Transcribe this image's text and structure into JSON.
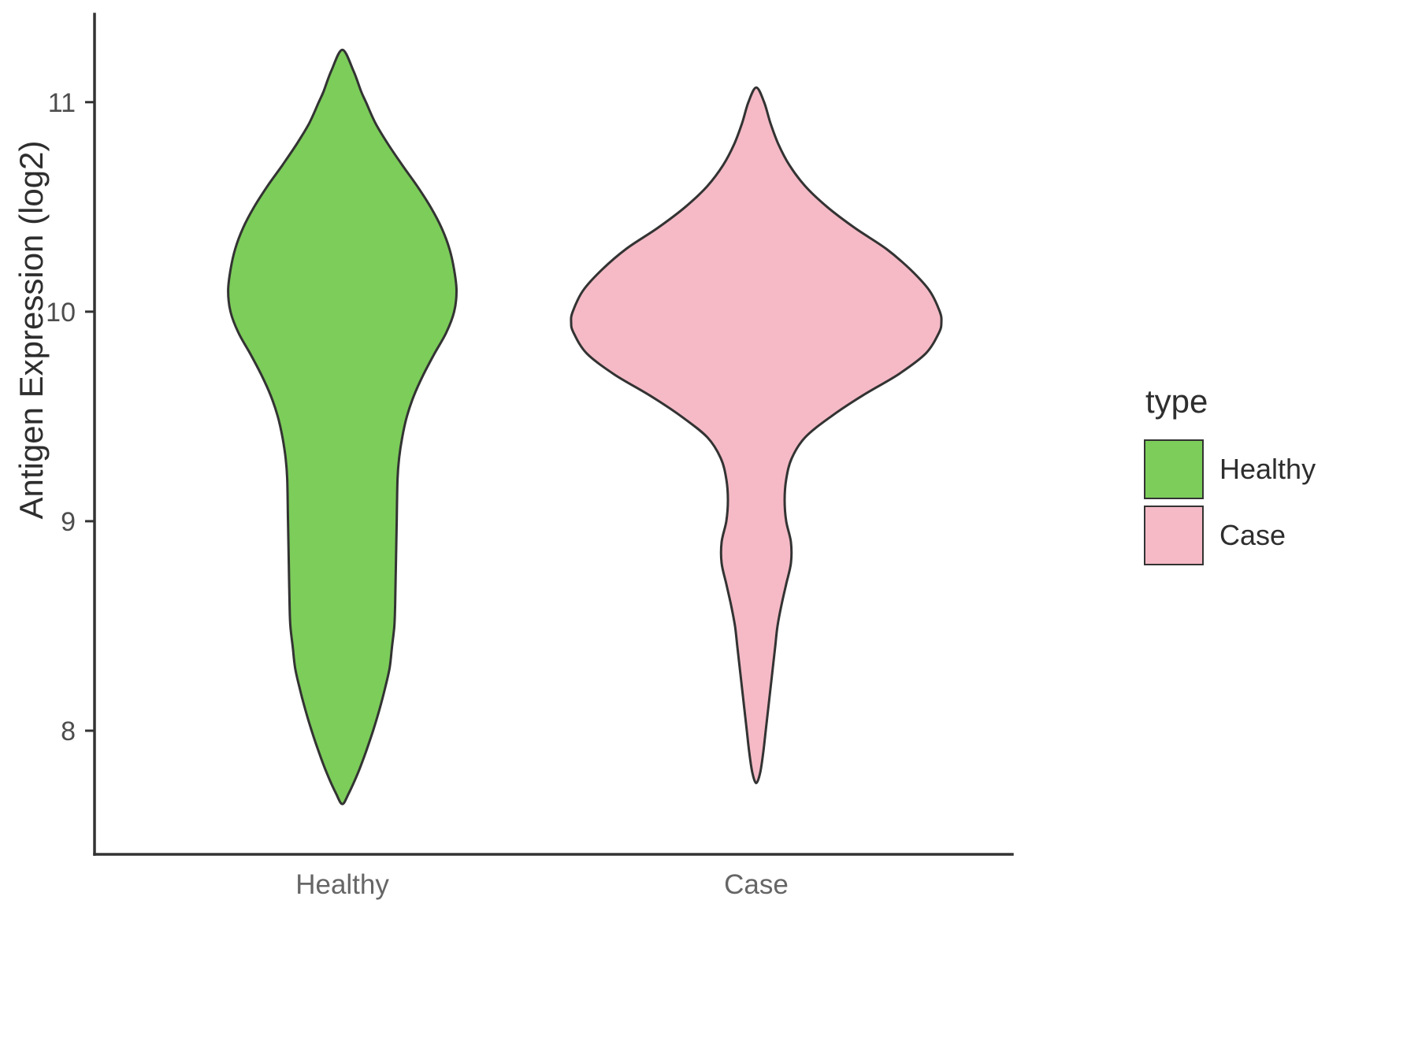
{
  "chart_data": {
    "type": "violin",
    "title": "",
    "xlabel": "",
    "ylabel": "Antigen Expression (log2)",
    "ylim": [
      7.41,
      11.42
    ],
    "yticks": [
      8,
      9,
      10,
      11
    ],
    "categories": [
      "Healthy",
      "Case"
    ],
    "legend": {
      "title": "type",
      "entries": [
        {
          "label": "Healthy",
          "color": "#7CCD5A"
        },
        {
          "label": "Case",
          "color": "#F5BAC6"
        }
      ]
    },
    "outline_color": "#333333",
    "axis_color": "#333333",
    "tick_label_color": "#4d4d4d",
    "category_label_color": "#666666",
    "series": [
      {
        "name": "Healthy",
        "color": "#7CCD5A",
        "profile": [
          [
            11.25,
            0
          ],
          [
            11.15,
            14
          ],
          [
            11.05,
            24
          ],
          [
            11.0,
            30
          ],
          [
            10.9,
            42
          ],
          [
            10.8,
            58
          ],
          [
            10.7,
            76
          ],
          [
            10.6,
            95
          ],
          [
            10.5,
            112
          ],
          [
            10.4,
            126
          ],
          [
            10.3,
            136
          ],
          [
            10.2,
            142
          ],
          [
            10.1,
            145
          ],
          [
            10.0,
            142
          ],
          [
            9.9,
            132
          ],
          [
            9.8,
            117
          ],
          [
            9.7,
            103
          ],
          [
            9.6,
            91
          ],
          [
            9.5,
            82
          ],
          [
            9.4,
            76
          ],
          [
            9.3,
            72
          ],
          [
            9.2,
            70
          ],
          [
            9.0,
            69
          ],
          [
            8.8,
            68
          ],
          [
            8.6,
            67
          ],
          [
            8.5,
            66
          ],
          [
            8.4,
            63
          ],
          [
            8.3,
            60
          ],
          [
            8.2,
            54
          ],
          [
            8.1,
            47
          ],
          [
            8.0,
            39
          ],
          [
            7.9,
            30
          ],
          [
            7.8,
            20
          ],
          [
            7.7,
            8
          ],
          [
            7.65,
            0
          ]
        ]
      },
      {
        "name": "Case",
        "color": "#F5BAC6",
        "profile": [
          [
            11.07,
            0
          ],
          [
            11.0,
            10
          ],
          [
            10.9,
            18
          ],
          [
            10.8,
            28
          ],
          [
            10.7,
            42
          ],
          [
            10.6,
            62
          ],
          [
            10.5,
            90
          ],
          [
            10.4,
            125
          ],
          [
            10.3,
            165
          ],
          [
            10.2,
            196
          ],
          [
            10.1,
            220
          ],
          [
            10.0,
            233
          ],
          [
            9.95,
            235
          ],
          [
            9.9,
            232
          ],
          [
            9.8,
            215
          ],
          [
            9.7,
            180
          ],
          [
            9.6,
            135
          ],
          [
            9.5,
            95
          ],
          [
            9.4,
            62
          ],
          [
            9.3,
            45
          ],
          [
            9.2,
            38
          ],
          [
            9.1,
            36
          ],
          [
            9.0,
            38
          ],
          [
            8.9,
            44
          ],
          [
            8.8,
            44
          ],
          [
            8.7,
            38
          ],
          [
            8.6,
            32
          ],
          [
            8.5,
            27
          ],
          [
            8.4,
            24
          ],
          [
            8.3,
            21
          ],
          [
            8.2,
            18
          ],
          [
            8.1,
            15
          ],
          [
            8.0,
            12
          ],
          [
            7.9,
            9
          ],
          [
            7.8,
            5
          ],
          [
            7.75,
            0
          ]
        ]
      }
    ]
  }
}
